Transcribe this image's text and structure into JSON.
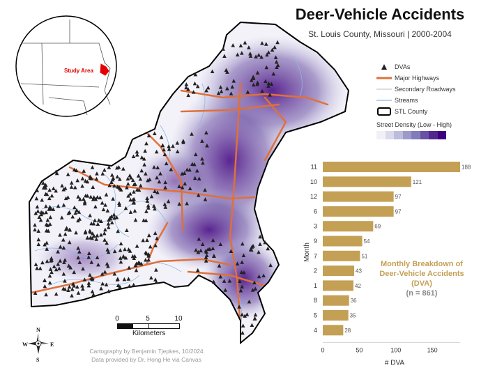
{
  "title": "Deer-Vehicle Accidents",
  "subtitle": "St. Louis County, Missouri | 2000-2004",
  "legend": {
    "dvas": "DVAs",
    "major_highways": "Major Highways",
    "secondary_roadways": "Secondary Roadways",
    "streams": "Streams",
    "stl_county": "STL County",
    "street_density": "Street Density (Low - High)"
  },
  "inset": {
    "label": "Study Area"
  },
  "scale_bar": {
    "ticks": [
      "0",
      "5",
      "10"
    ],
    "unit": "Kilometers"
  },
  "compass": {
    "n": "N",
    "s": "S",
    "e": "E",
    "w": "W"
  },
  "credits": {
    "line1": "Cartography by Benjamin Tjepkes, 10/2024",
    "line2": "Data provided by Dr. Hong He via Canvas"
  },
  "chart_annotation": {
    "title": "Monthly Breakdown of Deer-Vehicle Accidents (DVA)",
    "count": "(n = 861)"
  },
  "colors": {
    "bar": "#c4a055",
    "highway": "#e0703a",
    "stream": "#8ab8e6",
    "county_outline": "#000000",
    "density_low": "#f2f0f7",
    "density_high": "#3f007d"
  },
  "chart_data": {
    "type": "bar",
    "orientation": "horizontal",
    "categories": [
      "11",
      "10",
      "12",
      "6",
      "3",
      "9",
      "7",
      "2",
      "1",
      "8",
      "5",
      "4"
    ],
    "values": [
      188,
      121,
      97,
      97,
      69,
      54,
      51,
      43,
      42,
      36,
      35,
      28
    ],
    "data_labels": [
      "188",
      "121",
      "97",
      "97",
      "69",
      "54",
      "51",
      "43",
      "42",
      "36",
      "35",
      "28"
    ],
    "xlabel": "# DVA",
    "ylabel": "Month",
    "xticks": [
      "0",
      "50",
      "100",
      "150"
    ],
    "xlim": [
      0,
      188
    ]
  }
}
